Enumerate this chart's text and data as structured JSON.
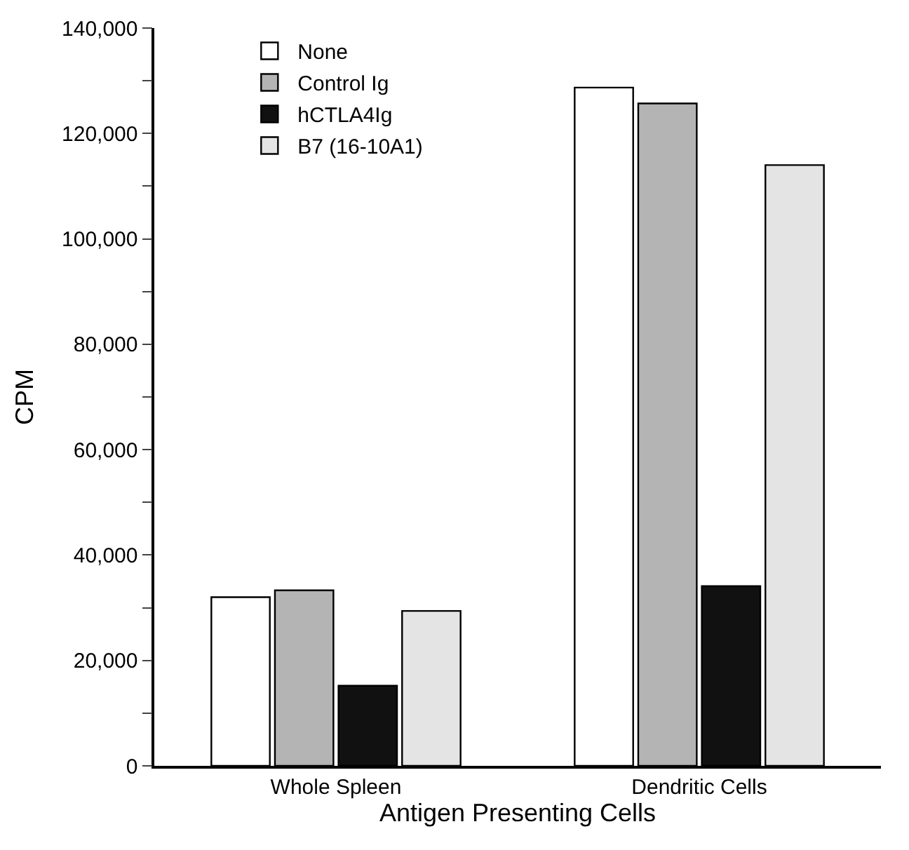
{
  "chart_data": {
    "type": "bar",
    "xlabel": "Antigen Presenting Cells",
    "ylabel": "CPM",
    "categories": [
      "Whole Spleen",
      "Dendritic Cells"
    ],
    "series": [
      {
        "name": "None",
        "color": "#ffffff",
        "values": [
          32000,
          128700
        ]
      },
      {
        "name": "Control Ig",
        "color": "#b4b4b4",
        "values": [
          33300,
          125700
        ]
      },
      {
        "name": "hCTLA4Ig",
        "color": "#111111",
        "values": [
          15200,
          34100
        ]
      },
      {
        "name": "B7 (16-10A1)",
        "color": "#e4e4e4",
        "values": [
          29400,
          114000
        ]
      }
    ],
    "ylim": [
      0,
      140000
    ],
    "yticks": [
      0,
      {
        "value": 10000,
        "label": null
      },
      {
        "value": 20000,
        "label": "20,000"
      },
      {
        "value": 30000,
        "label": null
      },
      {
        "value": 40000,
        "label": "40,000"
      },
      {
        "value": 50000,
        "label": null
      },
      {
        "value": 60000,
        "label": "60,000"
      },
      {
        "value": 70000,
        "label": null
      },
      {
        "value": 80000,
        "label": "80,000"
      },
      {
        "value": 90000,
        "label": null
      },
      {
        "value": 100000,
        "label": "100,000"
      },
      {
        "value": 110000,
        "label": null
      },
      {
        "value": 120000,
        "label": "120,000"
      },
      {
        "value": 130000,
        "label": null
      },
      {
        "value": 140000,
        "label": "140,000"
      }
    ],
    "legend": "top left"
  }
}
